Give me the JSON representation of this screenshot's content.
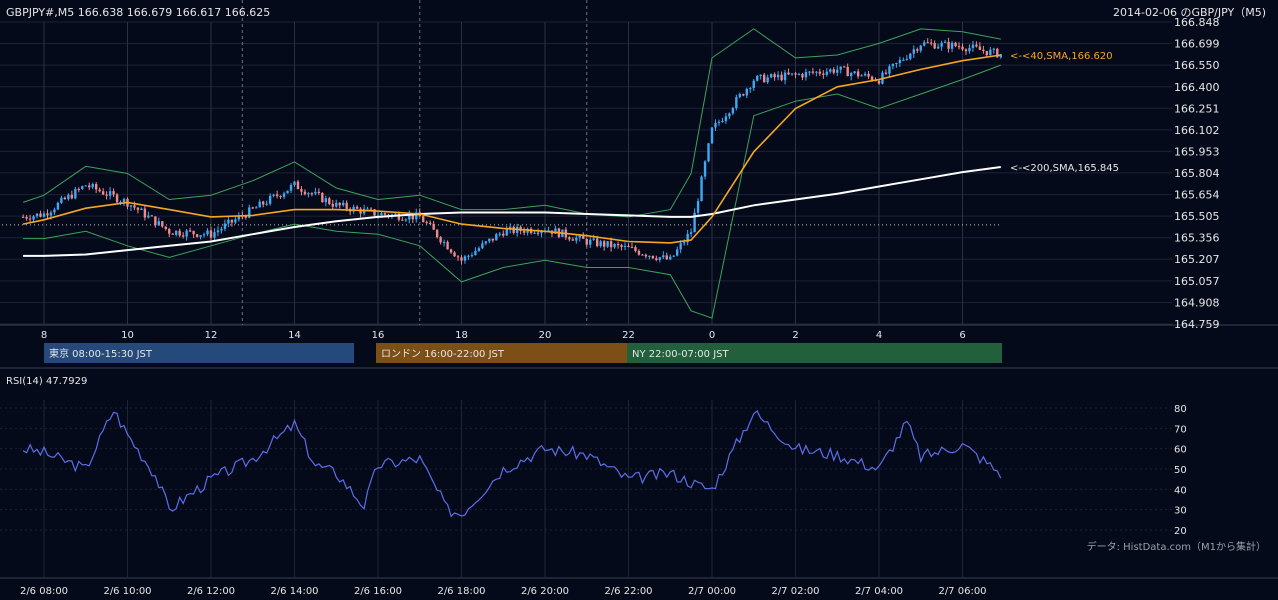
{
  "header": {
    "symbol_info": "GBPJPY#,M5 166.638 166.679 166.617 166.625",
    "chart_title": "2014-02-06 のGBP/JPY（M5)"
  },
  "price_axis": {
    "ticks": [
      "166.848",
      "166.699",
      "166.550",
      "166.400",
      "166.251",
      "166.102",
      "165.953",
      "165.804",
      "165.654",
      "165.505",
      "165.356",
      "165.207",
      "165.057",
      "164.908",
      "164.759"
    ],
    "ylim": [
      164.759,
      166.848
    ]
  },
  "hour_axis": {
    "labels": [
      "8",
      "10",
      "12",
      "14",
      "16",
      "18",
      "20",
      "22",
      "0",
      "2",
      "4",
      "6"
    ]
  },
  "sessions": [
    {
      "label": "東京 08:00-15:30 JST",
      "color": "#25497a"
    },
    {
      "label": "ロンドン 16:00-22:00 JST",
      "color": "#7b4f16"
    },
    {
      "label": "NY 22:00-07:00 JST",
      "color": "#225f3b"
    }
  ],
  "sma_labels": {
    "sma40": "<-<40,SMA,166.620",
    "sma200": "<-<200,SMA,165.845"
  },
  "rsi": {
    "title": "RSI(14) 47.7929",
    "ticks": [
      "80",
      "70",
      "60",
      "50",
      "40",
      "30",
      "20"
    ],
    "ylim": [
      20,
      80
    ]
  },
  "time_axis": {
    "labels": [
      "2/6 08:00",
      "2/6 10:00",
      "2/6 12:00",
      "2/6 14:00",
      "2/6 16:00",
      "2/6 18:00",
      "2/6 20:00",
      "2/6 22:00",
      "2/7 00:00",
      "2/7 02:00",
      "2/7 04:00",
      "2/7 06:00"
    ]
  },
  "source_note": "データ: HistData.com（M1から集計）",
  "colors": {
    "background": "#050a1a",
    "bull": "#3fa9f5",
    "bear": "#f08a8a",
    "sma40": "#f5a623",
    "sma200": "#ffffff",
    "bollinger": "#3ca35a",
    "rsi_line": "#5b6ee8"
  },
  "chart_data": [
    {
      "type": "line",
      "title": "2014-02-06 のGBP/JPY（M5)",
      "xlabel": "",
      "ylabel": "",
      "ylim": [
        164.759,
        166.848
      ],
      "x": [
        "2/6 07:30",
        "2/6 08:00",
        "2/6 09:00",
        "2/6 10:00",
        "2/6 11:00",
        "2/6 12:00",
        "2/6 13:00",
        "2/6 14:00",
        "2/6 15:00",
        "2/6 16:00",
        "2/6 17:00",
        "2/6 18:00",
        "2/6 19:00",
        "2/6 20:00",
        "2/6 21:00",
        "2/6 22:00",
        "2/6 23:00",
        "2/6 23:30",
        "2/7 00:00",
        "2/7 01:00",
        "2/7 02:00",
        "2/7 03:00",
        "2/7 04:00",
        "2/7 05:00",
        "2/7 06:00",
        "2/7 06:55"
      ],
      "series": [
        {
          "name": "close",
          "values": [
            165.5,
            165.52,
            165.72,
            165.6,
            165.4,
            165.38,
            165.55,
            165.72,
            165.58,
            165.52,
            165.5,
            165.2,
            165.4,
            165.42,
            165.33,
            165.28,
            165.2,
            165.4,
            166.1,
            166.45,
            166.48,
            166.52,
            166.45,
            166.7,
            166.68,
            166.625
          ]
        },
        {
          "name": "SMA(40)",
          "values": [
            165.45,
            165.48,
            165.56,
            165.6,
            165.55,
            165.5,
            165.51,
            165.55,
            165.55,
            165.54,
            165.52,
            165.45,
            165.42,
            165.4,
            165.37,
            165.33,
            165.32,
            165.34,
            165.5,
            165.95,
            166.25,
            166.4,
            166.45,
            166.52,
            166.58,
            166.62
          ]
        },
        {
          "name": "SMA(200)",
          "values": [
            165.23,
            165.23,
            165.24,
            165.27,
            165.3,
            165.33,
            165.38,
            165.43,
            165.47,
            165.5,
            165.52,
            165.53,
            165.53,
            165.53,
            165.52,
            165.51,
            165.5,
            165.5,
            165.52,
            165.58,
            165.62,
            165.66,
            165.71,
            165.76,
            165.81,
            165.845
          ]
        },
        {
          "name": "BB upper",
          "values": [
            165.6,
            165.65,
            165.85,
            165.8,
            165.62,
            165.65,
            165.75,
            165.88,
            165.7,
            165.62,
            165.65,
            165.55,
            165.55,
            165.58,
            165.52,
            165.5,
            165.55,
            165.8,
            166.6,
            166.8,
            166.6,
            166.62,
            166.7,
            166.8,
            166.78,
            166.73
          ]
        },
        {
          "name": "BB lower",
          "values": [
            165.35,
            165.35,
            165.4,
            165.3,
            165.22,
            165.3,
            165.38,
            165.45,
            165.4,
            165.38,
            165.3,
            165.05,
            165.15,
            165.2,
            165.15,
            165.15,
            165.1,
            164.85,
            164.8,
            166.2,
            166.3,
            166.35,
            166.25,
            166.35,
            166.45,
            166.55
          ]
        }
      ]
    },
    {
      "type": "line",
      "title": "RSI(14) 47.7929",
      "xlabel": "",
      "ylabel": "",
      "ylim": [
        20,
        80
      ],
      "x": [
        "2/6 07:30",
        "2/6 08:00",
        "2/6 09:00",
        "2/6 09:40",
        "2/6 10:00",
        "2/6 10:40",
        "2/6 11:00",
        "2/6 12:00",
        "2/6 13:00",
        "2/6 14:00",
        "2/6 14:30",
        "2/6 15:00",
        "2/6 15:40",
        "2/6 16:00",
        "2/6 17:00",
        "2/6 17:40",
        "2/6 18:00",
        "2/6 19:00",
        "2/6 20:00",
        "2/6 21:00",
        "2/6 22:00",
        "2/6 23:00",
        "2/6 23:40",
        "2/7 00:00",
        "2/7 01:00",
        "2/7 02:00",
        "2/7 03:00",
        "2/7 04:00",
        "2/7 04:40",
        "2/7 05:00",
        "2/7 06:00",
        "2/7 06:55"
      ],
      "series": [
        {
          "name": "RSI(14)",
          "values": [
            60,
            58,
            50,
            79,
            67,
            47,
            30,
            45,
            55,
            72,
            52,
            48,
            32,
            52,
            55,
            30,
            28,
            50,
            60,
            57,
            45,
            48,
            42,
            40,
            78,
            60,
            57,
            50,
            73,
            56,
            62,
            47.79
          ]
        }
      ]
    }
  ]
}
